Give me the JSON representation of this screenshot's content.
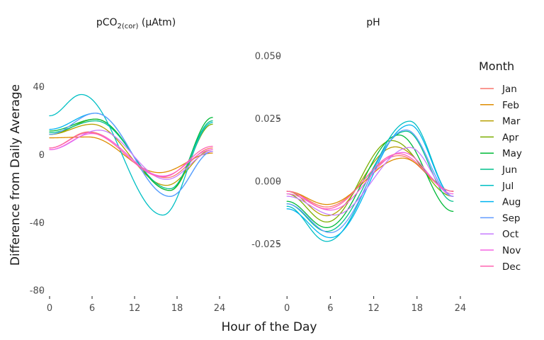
{
  "chart_data": {
    "type": "line",
    "xlabel": "Hour of the Day",
    "ylabel": "Difference from Daily Average",
    "x": [
      0,
      1,
      2,
      3,
      4,
      5,
      6,
      7,
      8,
      9,
      10,
      11,
      12,
      13,
      14,
      15,
      16,
      17,
      18,
      19,
      20,
      21,
      22,
      23
    ],
    "legend": {
      "title": "Month",
      "position": "right",
      "entries": [
        {
          "name": "Jan",
          "color": "#F8766D"
        },
        {
          "name": "Feb",
          "color": "#DE8C00"
        },
        {
          "name": "Mar",
          "color": "#B79F00"
        },
        {
          "name": "Apr",
          "color": "#7CAE00"
        },
        {
          "name": "May",
          "color": "#00BA38"
        },
        {
          "name": "Jun",
          "color": "#00C08B"
        },
        {
          "name": "Jul",
          "color": "#00BFC4"
        },
        {
          "name": "Aug",
          "color": "#00B4F0"
        },
        {
          "name": "Sep",
          "color": "#619CFF"
        },
        {
          "name": "Oct",
          "color": "#C77CFF"
        },
        {
          "name": "Nov",
          "color": "#F564E3"
        },
        {
          "name": "Dec",
          "color": "#FF64B0"
        }
      ]
    },
    "panels": [
      {
        "strip_title": "pCO",
        "strip_title_sub": "2(cor)",
        "strip_title_suffix": " (μAtm)",
        "xlim": [
          -1,
          24.5
        ],
        "xticks": [
          0,
          6,
          12,
          18,
          24
        ],
        "ylim": [
          -82,
          67
        ],
        "yticks": [
          -80,
          -40,
          0,
          40
        ],
        "ytick_labels": [
          "-80",
          "-40",
          "0",
          "40"
        ],
        "series": [
          {
            "name": "Jan",
            "amp": 27,
            "peak": 5.5,
            "trough": 16.5,
            "start": 4,
            "end": 4
          },
          {
            "name": "Feb",
            "amp": 21,
            "peak": 5.5,
            "trough": 15.5,
            "start": 10,
            "end": 1
          },
          {
            "name": "Mar",
            "amp": 36,
            "peak": 6,
            "trough": 16.5,
            "start": 12,
            "end": 3
          },
          {
            "name": "Apr",
            "amp": 42,
            "peak": 6.5,
            "trough": 17,
            "start": 12,
            "end": 18
          },
          {
            "name": "May",
            "amp": 42,
            "peak": 6.5,
            "trough": 17,
            "start": 14,
            "end": 22
          },
          {
            "name": "Jun",
            "amp": 40,
            "peak": 6.5,
            "trough": 17,
            "start": 13,
            "end": 20
          },
          {
            "name": "Jul",
            "amp": 71,
            "peak": 4.5,
            "trough": 16,
            "start": 23,
            "end": 19
          },
          {
            "name": "Aug",
            "amp": 49,
            "peak": 6.5,
            "trough": 17,
            "start": 15,
            "end": 2
          },
          {
            "name": "Sep",
            "amp": 49,
            "peak": 6.5,
            "trough": 17,
            "start": 12,
            "end": 2
          },
          {
            "name": "Oct",
            "amp": 29,
            "peak": 7,
            "trough": 16.5,
            "start": 3,
            "end": 2
          },
          {
            "name": "Nov",
            "amp": 25,
            "peak": 6,
            "trough": 16,
            "start": 3,
            "end": 3
          },
          {
            "name": "Dec",
            "amp": 26,
            "peak": 5.5,
            "trough": 16,
            "start": 4,
            "end": 5
          }
        ]
      },
      {
        "strip_title": "pH",
        "strip_title_sub": "",
        "strip_title_suffix": "",
        "xlim": [
          -1,
          24.5
        ],
        "xticks": [
          0,
          6,
          12,
          18,
          24
        ],
        "ylim": [
          -0.045,
          0.056
        ],
        "yticks": [
          -0.025,
          0.0,
          0.025,
          0.05
        ],
        "ytick_labels": [
          "-0.025",
          "0.000",
          "0.025",
          "0.050"
        ],
        "series": [
          {
            "name": "Jan",
            "amp": 0.0205,
            "peak": 15.5,
            "trough": 5.5,
            "start": -0.004,
            "end": -0.004
          },
          {
            "name": "Feb",
            "amp": 0.0185,
            "peak": 16,
            "trough": 5.5,
            "start": -0.004,
            "end": -0.004
          },
          {
            "name": "Mar",
            "amp": 0.0275,
            "peak": 15,
            "trough": 5.5,
            "start": -0.004,
            "end": -0.004
          },
          {
            "name": "Apr",
            "amp": 0.0325,
            "peak": 14.5,
            "trough": 5.5,
            "start": -0.005,
            "end": -0.006
          },
          {
            "name": "May",
            "amp": 0.037,
            "peak": 15.5,
            "trough": 5.5,
            "start": -0.008,
            "end": -0.012
          },
          {
            "name": "Jun",
            "amp": 0.04,
            "peak": 16.5,
            "trough": 5.5,
            "start": -0.009,
            "end": -0.008
          },
          {
            "name": "Jul",
            "amp": 0.048,
            "peak": 17,
            "trough": 5.5,
            "start": -0.01,
            "end": -0.006
          },
          {
            "name": "Aug",
            "amp": 0.045,
            "peak": 17,
            "trough": 6,
            "start": -0.011,
            "end": -0.006
          },
          {
            "name": "Sep",
            "amp": 0.041,
            "peak": 16.5,
            "trough": 6,
            "start": -0.009,
            "end": -0.006
          },
          {
            "name": "Oct",
            "amp": 0.027,
            "peak": 17,
            "trough": 6.5,
            "start": -0.006,
            "end": -0.006
          },
          {
            "name": "Nov",
            "amp": 0.023,
            "peak": 16,
            "trough": 6,
            "start": -0.005,
            "end": -0.005
          },
          {
            "name": "Dec",
            "amp": 0.022,
            "peak": 15.5,
            "trough": 5.5,
            "start": -0.004,
            "end": -0.004
          }
        ]
      }
    ]
  }
}
